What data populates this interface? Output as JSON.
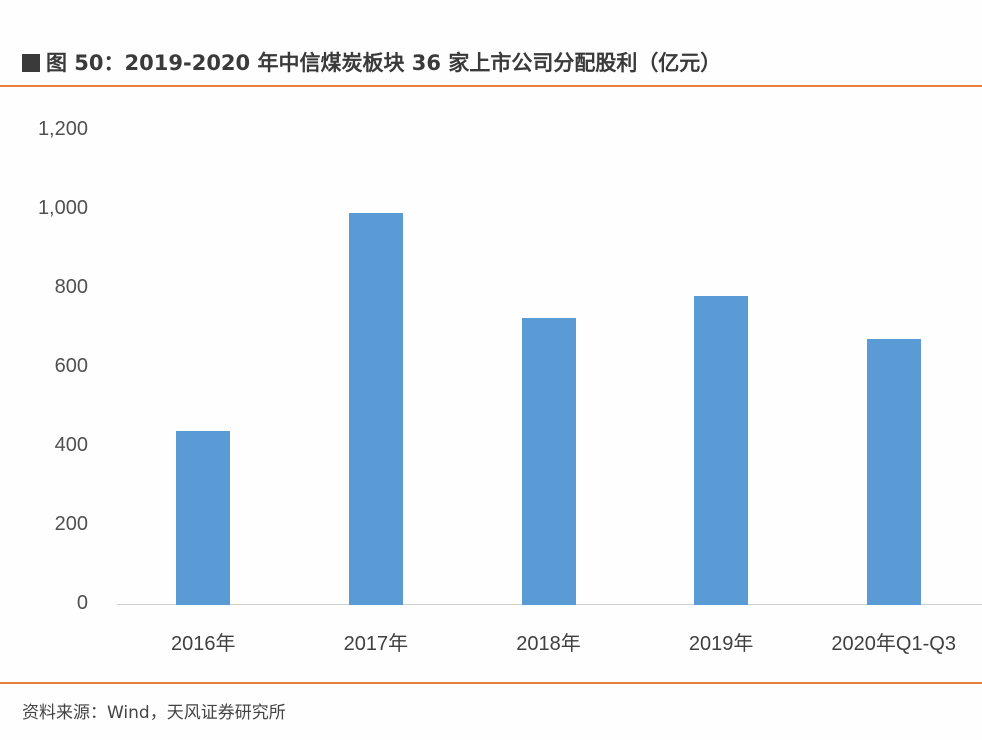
{
  "header": {
    "figure_label": "图 50：",
    "title": "2019-2020 年中信煤炭板块 36 家上市公司分配股利（亿元）"
  },
  "footer": {
    "source": "资料来源：Wind，天风证券研究所"
  },
  "colors": {
    "bar": "#5b9bd5",
    "rule": "#e8803a",
    "axis": "#d0d0d0"
  },
  "y_ticks": [
    "1,200",
    "1,000",
    "800",
    "600",
    "400",
    "200",
    "0"
  ],
  "chart_data": {
    "type": "bar",
    "title": "2019-2020 年中信煤炭板块 36 家上市公司分配股利（亿元）",
    "categories": [
      "2016年",
      "2017年",
      "2018年",
      "2019年",
      "2020年Q1-Q3"
    ],
    "values": [
      440,
      992,
      727,
      782,
      673
    ],
    "xlabel": "",
    "ylabel": "亿元",
    "ylim": [
      0,
      1200
    ],
    "yticks": [
      0,
      200,
      400,
      600,
      800,
      1000,
      1200
    ],
    "grid": false,
    "legend": "none",
    "source": "资料来源：Wind，天风证券研究所"
  }
}
